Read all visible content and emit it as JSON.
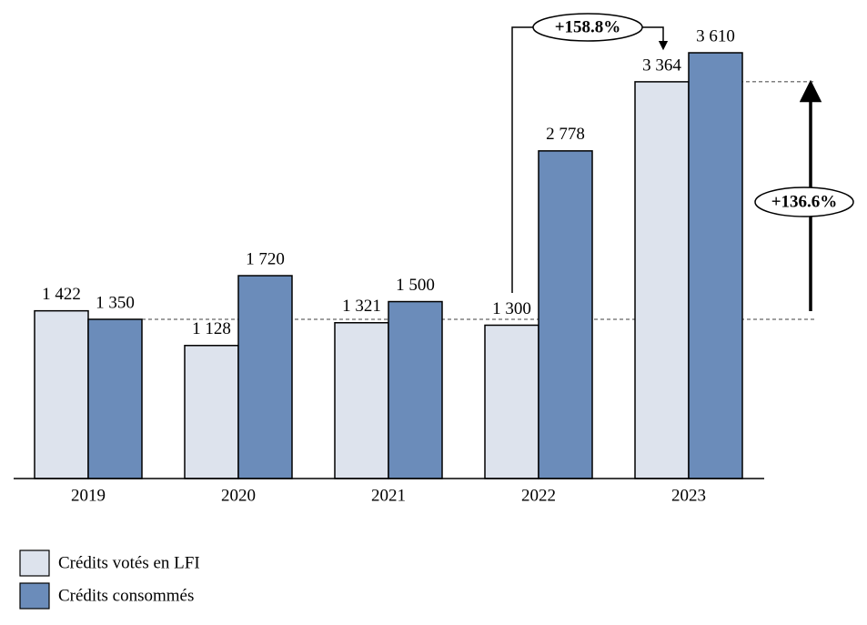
{
  "chart_data": {
    "type": "bar",
    "categories": [
      "2019",
      "2020",
      "2021",
      "2022",
      "2023"
    ],
    "series": [
      {
        "name": "Crédits votés en LFI",
        "color": "#dde3ed",
        "values": [
          1422,
          1128,
          1321,
          1300,
          3364
        ],
        "value_labels": [
          "1 422",
          "1 128",
          "1 321",
          "1 300",
          "3 364"
        ]
      },
      {
        "name": "Crédits consommés",
        "color": "#6b8cba",
        "values": [
          1350,
          1720,
          1500,
          2778,
          3610
        ],
        "value_labels": [
          "1 350",
          "1 720",
          "1 500",
          "2 778",
          "3 610"
        ]
      }
    ],
    "annotations": [
      "+158.8%",
      "+136.6%"
    ]
  }
}
